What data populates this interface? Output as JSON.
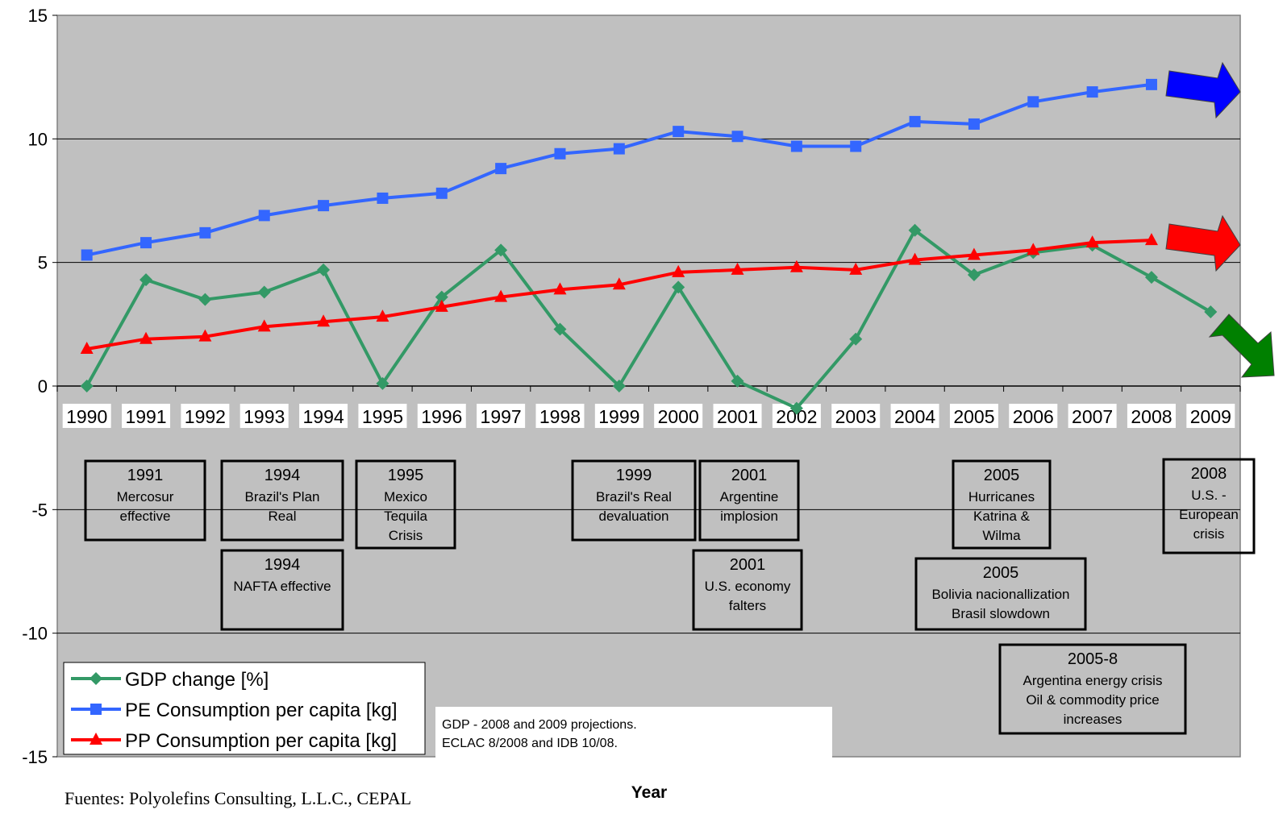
{
  "chart_data": {
    "type": "line",
    "title": "",
    "xlabel": "Year",
    "ylabel": "",
    "ylim": [
      -15,
      15
    ],
    "yticks": [
      "15",
      "10",
      "5",
      "0",
      "-5",
      "-10",
      "-15"
    ],
    "categories": [
      "1990",
      "1991",
      "1992",
      "1993",
      "1994",
      "1995",
      "1996",
      "1997",
      "1998",
      "1999",
      "2000",
      "2001",
      "2002",
      "2003",
      "2004",
      "2005",
      "2006",
      "2007",
      "2008",
      "2009"
    ],
    "grid": true,
    "legend_position": "bottom-left",
    "series": [
      {
        "name": "GDP change [%]",
        "color": "#339966",
        "marker": "diamond",
        "values": [
          0.0,
          4.3,
          3.5,
          3.8,
          4.7,
          0.1,
          3.6,
          5.5,
          2.3,
          0.0,
          4.0,
          0.2,
          -0.9,
          1.9,
          6.3,
          4.5,
          5.4,
          5.7,
          4.4,
          3.0
        ]
      },
      {
        "name": "PE Consumption per capita [kg]",
        "color": "#3366FF",
        "marker": "square",
        "values": [
          5.3,
          5.8,
          6.2,
          6.9,
          7.3,
          7.6,
          7.8,
          8.8,
          9.4,
          9.6,
          10.3,
          10.1,
          9.7,
          9.7,
          10.7,
          10.6,
          11.5,
          11.9,
          12.2,
          null
        ]
      },
      {
        "name": "PP Consumption per capita [kg]",
        "color": "#FF0000",
        "marker": "triangle",
        "values": [
          1.5,
          1.9,
          2.0,
          2.4,
          2.6,
          2.8,
          3.2,
          3.6,
          3.9,
          4.1,
          4.6,
          4.7,
          4.8,
          4.7,
          5.1,
          5.3,
          5.5,
          5.8,
          5.9,
          null
        ]
      }
    ],
    "trend_arrows": [
      {
        "series": "PE Consumption per capita [kg]",
        "color": "#0000FF",
        "direction": "up"
      },
      {
        "series": "PP Consumption per capita [kg]",
        "color": "#FF0000",
        "direction": "up"
      },
      {
        "series": "GDP change [%]",
        "color": "#008000",
        "direction": "down"
      }
    ],
    "annotations": [
      {
        "lines": [
          "1991",
          "Mercosur",
          "effective"
        ]
      },
      {
        "lines": [
          "1994",
          "Brazil's Plan",
          "Real"
        ]
      },
      {
        "lines": [
          "1994",
          "NAFTA effective"
        ]
      },
      {
        "lines": [
          "1995",
          "Mexico",
          "Tequila",
          "Crisis"
        ]
      },
      {
        "lines": [
          "1999",
          "Brazil's Real",
          "devaluation"
        ]
      },
      {
        "lines": [
          "2001",
          "Argentine",
          "implosion"
        ]
      },
      {
        "lines": [
          "2001",
          "U.S. economy",
          "falters"
        ]
      },
      {
        "lines": [
          "2005",
          "Hurricanes",
          "Katrina &",
          "Wilma"
        ]
      },
      {
        "lines": [
          "2005",
          "Bolivia nacionallization",
          "Brasil slowdown"
        ]
      },
      {
        "lines": [
          "2005-8",
          "Argentina energy crisis",
          "Oil & commodity price",
          "increases"
        ]
      },
      {
        "lines": [
          "2008",
          "U.S. -",
          "European",
          "crisis"
        ]
      }
    ],
    "note": [
      "GDP - 2008 and 2009 projections.",
      "ECLAC 8/2008 and IDB 10/08."
    ]
  },
  "source_text": "Fuentes: Polyolefins Consulting, L.L.C., CEPAL"
}
